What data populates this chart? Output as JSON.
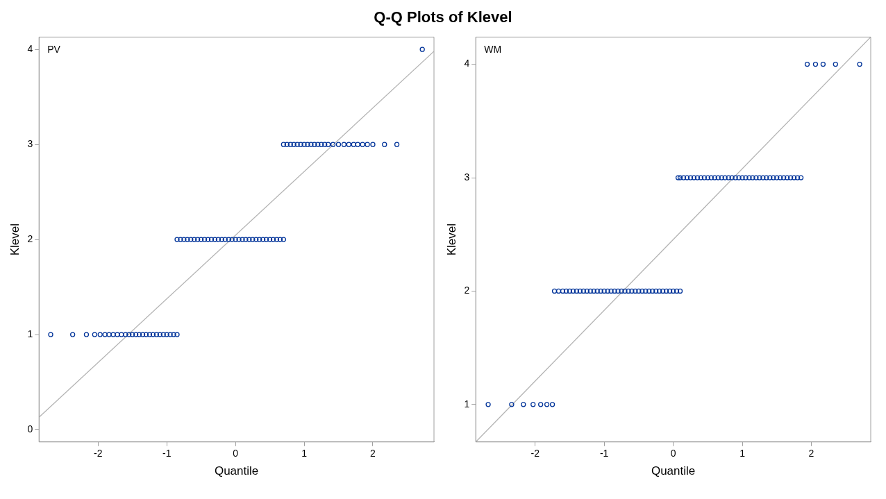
{
  "chart_data": [
    {
      "type": "scatter",
      "title": "Q-Q Plots of Klevel",
      "annotations": [
        "PV"
      ],
      "xlabel": "Quantile",
      "ylabel": "Klevel",
      "xlim": [
        -2.86,
        2.89
      ],
      "ylim": [
        -0.13,
        4.13
      ],
      "xticks": [
        -2,
        -1,
        0,
        1,
        2
      ],
      "yticks": [
        0,
        1,
        2,
        3,
        4
      ],
      "grid": false,
      "legend": false,
      "marker": "circle",
      "series": [
        {
          "color": "#003399",
          "x": [
            -2.69,
            -2.37,
            -2.17,
            -2.05,
            -1.97,
            -1.9,
            -1.84,
            -1.78,
            -1.72,
            -1.66,
            -1.6,
            -1.55,
            -1.5,
            -1.45,
            -1.4,
            -1.35,
            -1.3,
            -1.25,
            -1.2,
            -1.15,
            -1.1,
            -1.05,
            -1.0,
            -0.95,
            -0.9,
            -0.85
          ],
          "values": [
            1,
            1,
            1,
            1,
            1,
            1,
            1,
            1,
            1,
            1,
            1,
            1,
            1,
            1,
            1,
            1,
            1,
            1,
            1,
            1,
            1,
            1,
            1,
            1,
            1,
            1
          ]
        },
        {
          "color": "#003399",
          "x": [
            -0.85,
            -0.8,
            -0.75,
            -0.7,
            -0.65,
            -0.6,
            -0.55,
            -0.5,
            -0.45,
            -0.4,
            -0.35,
            -0.3,
            -0.25,
            -0.2,
            -0.15,
            -0.1,
            -0.05,
            0,
            0.05,
            0.1,
            0.15,
            0.2,
            0.25,
            0.3,
            0.35,
            0.4,
            0.45,
            0.5,
            0.55,
            0.6,
            0.65,
            0.7
          ],
          "values": [
            2,
            2,
            2,
            2,
            2,
            2,
            2,
            2,
            2,
            2,
            2,
            2,
            2,
            2,
            2,
            2,
            2,
            2,
            2,
            2,
            2,
            2,
            2,
            2,
            2,
            2,
            2,
            2,
            2,
            2,
            2,
            2
          ]
        },
        {
          "color": "#003399",
          "x": [
            0.7,
            0.75,
            0.8,
            0.85,
            0.9,
            0.95,
            1.0,
            1.05,
            1.1,
            1.15,
            1.2,
            1.25,
            1.3,
            1.35,
            1.42,
            1.5,
            1.58,
            1.65,
            1.72,
            1.78,
            1.85,
            1.92,
            2.0,
            2.17,
            2.35
          ],
          "values": [
            3,
            3,
            3,
            3,
            3,
            3,
            3,
            3,
            3,
            3,
            3,
            3,
            3,
            3,
            3,
            3,
            3,
            3,
            3,
            3,
            3,
            3,
            3,
            3,
            3
          ]
        },
        {
          "color": "#003399",
          "x": [
            2.72
          ],
          "values": [
            4
          ]
        },
        {
          "type": "line",
          "color": "#b4b4b4",
          "marker": "none",
          "x": [
            -2.86,
            2.89
          ],
          "values": [
            0.13,
            3.98
          ]
        }
      ]
    },
    {
      "type": "scatter",
      "annotations": [
        "WM"
      ],
      "xlabel": "Quantile",
      "ylabel": "Klevel",
      "xlim": [
        -2.86,
        2.86
      ],
      "ylim": [
        0.67,
        4.24
      ],
      "xticks": [
        -2,
        -1,
        0,
        1,
        2
      ],
      "yticks": [
        1,
        2,
        3,
        4
      ],
      "grid": false,
      "legend": false,
      "marker": "circle",
      "series": [
        {
          "color": "#003399",
          "x": [
            -2.68,
            -2.34,
            -2.17,
            -2.03,
            -1.92,
            -1.83,
            -1.75
          ],
          "values": [
            1,
            1,
            1,
            1,
            1,
            1,
            1
          ]
        },
        {
          "color": "#003399",
          "x": [
            -1.72,
            -1.66,
            -1.6,
            -1.55,
            -1.5,
            -1.45,
            -1.4,
            -1.35,
            -1.3,
            -1.25,
            -1.2,
            -1.15,
            -1.1,
            -1.05,
            -1.0,
            -0.95,
            -0.9,
            -0.85,
            -0.8,
            -0.75,
            -0.7,
            -0.65,
            -0.6,
            -0.55,
            -0.5,
            -0.45,
            -0.4,
            -0.35,
            -0.3,
            -0.25,
            -0.2,
            -0.15,
            -0.1,
            -0.05,
            0,
            0.05,
            0.1
          ],
          "values": [
            2,
            2,
            2,
            2,
            2,
            2,
            2,
            2,
            2,
            2,
            2,
            2,
            2,
            2,
            2,
            2,
            2,
            2,
            2,
            2,
            2,
            2,
            2,
            2,
            2,
            2,
            2,
            2,
            2,
            2,
            2,
            2,
            2,
            2,
            2,
            2,
            2
          ]
        },
        {
          "color": "#003399",
          "x": [
            0.07,
            0.1,
            0.15,
            0.2,
            0.25,
            0.3,
            0.35,
            0.4,
            0.45,
            0.5,
            0.55,
            0.6,
            0.65,
            0.7,
            0.75,
            0.8,
            0.85,
            0.9,
            0.95,
            1.0,
            1.05,
            1.1,
            1.15,
            1.2,
            1.25,
            1.3,
            1.35,
            1.4,
            1.45,
            1.5,
            1.55,
            1.6,
            1.65,
            1.7,
            1.75,
            1.8,
            1.85
          ],
          "values": [
            3,
            3,
            3,
            3,
            3,
            3,
            3,
            3,
            3,
            3,
            3,
            3,
            3,
            3,
            3,
            3,
            3,
            3,
            3,
            3,
            3,
            3,
            3,
            3,
            3,
            3,
            3,
            3,
            3,
            3,
            3,
            3,
            3,
            3,
            3,
            3,
            3
          ]
        },
        {
          "color": "#003399",
          "x": [
            1.94,
            2.06,
            2.17,
            2.35,
            2.7
          ],
          "values": [
            4,
            4,
            4,
            4,
            4
          ]
        },
        {
          "type": "line",
          "color": "#b4b4b4",
          "marker": "none",
          "x": [
            -2.86,
            2.86
          ],
          "values": [
            0.67,
            4.24
          ]
        }
      ]
    }
  ]
}
